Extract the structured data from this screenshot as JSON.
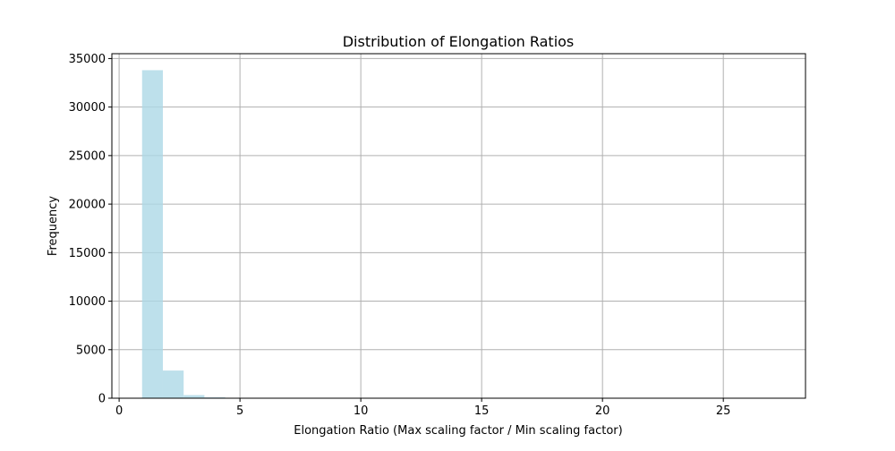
{
  "chart_data": {
    "type": "bar",
    "title": "Distribution of Elongation Ratios",
    "xlabel": "Elongation Ratio (Max scaling factor / Min scaling factor)",
    "ylabel": "Frequency",
    "xlim": [
      -0.3,
      28.4
    ],
    "ylim": [
      0,
      35500
    ],
    "xticks": [
      0,
      5,
      10,
      15,
      20,
      25
    ],
    "yticks": [
      0,
      5000,
      10000,
      15000,
      20000,
      25000,
      30000,
      35000
    ],
    "grid": true,
    "bar_color": "#add8e6",
    "bar_alpha": 0.8,
    "bins": [
      {
        "x0": 0.95,
        "x1": 1.81,
        "count": 33800
      },
      {
        "x0": 1.81,
        "x1": 2.67,
        "count": 2850
      },
      {
        "x0": 2.67,
        "x1": 3.53,
        "count": 320
      },
      {
        "x0": 3.53,
        "x1": 4.39,
        "count": 90
      },
      {
        "x0": 4.39,
        "x1": 5.25,
        "count": 30
      },
      {
        "x0": 5.25,
        "x1": 6.11,
        "count": 10
      }
    ]
  }
}
